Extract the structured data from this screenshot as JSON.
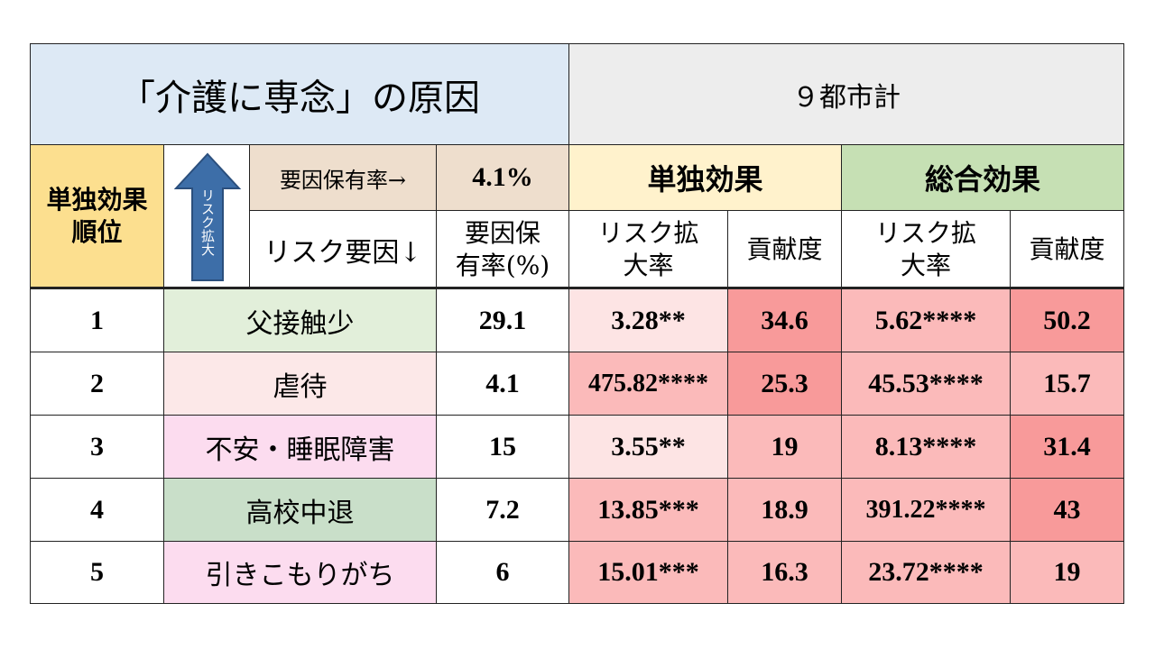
{
  "title": "「介護に専念」の原因",
  "city": "９都市計",
  "header": {
    "rank_label": "単独効果\n順位",
    "arrow_text": "リスク拡大",
    "factor_rate_label": "要因保有率→",
    "factor_rate_value": "4.1%",
    "risk_factor_label": "リスク要因↓",
    "single_effect": "単独効果",
    "total_effect": "総合効果",
    "rate_col": "要因保\n有率(%)",
    "risk_ratio_col": "リスク拡\n大率",
    "contribution_col": "貢献度"
  },
  "colors": {
    "title_bg": "#dde9f5",
    "city_bg": "#ededed",
    "rank_bg": "#fcdf8f",
    "rate_bg": "#eedecd",
    "single_bg": "#fff2cc",
    "total_bg": "#c6e0b4",
    "light_pink": "#fde4e4",
    "mid_pink": "#fbbaba",
    "strong_pink": "#f89a9a"
  },
  "rows": [
    {
      "rank": "1",
      "factor": "父接触少",
      "rate": "29.1",
      "s_ratio": "3.28**",
      "s_contrib": "34.6",
      "t_ratio": "5.62****",
      "t_contrib": "50.2"
    },
    {
      "rank": "2",
      "factor": "虐待",
      "rate": "4.1",
      "s_ratio": "475.82****",
      "s_contrib": "25.3",
      "t_ratio": "45.53****",
      "t_contrib": "15.7"
    },
    {
      "rank": "3",
      "factor": "不安・睡眠障害",
      "rate": "15",
      "s_ratio": "3.55**",
      "s_contrib": "19",
      "t_ratio": "8.13****",
      "t_contrib": "31.4"
    },
    {
      "rank": "4",
      "factor": "高校中退",
      "rate": "7.2",
      "s_ratio": "13.85***",
      "s_contrib": "18.9",
      "t_ratio": "391.22****",
      "t_contrib": "43"
    },
    {
      "rank": "5",
      "factor": "引きこもりがち",
      "rate": "6",
      "s_ratio": "15.01***",
      "s_contrib": "16.3",
      "t_ratio": "23.72****",
      "t_contrib": "19"
    }
  ]
}
